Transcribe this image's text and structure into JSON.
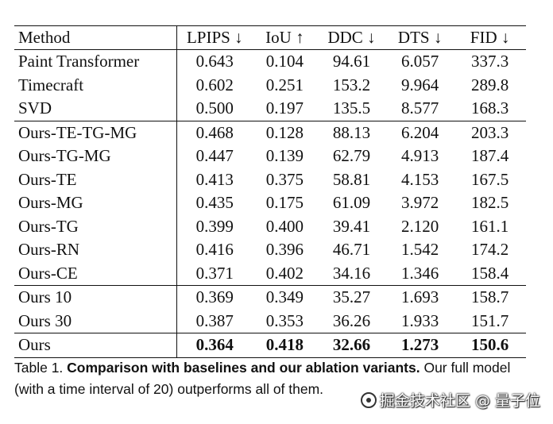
{
  "table": {
    "headers": [
      "Method",
      "LPIPS ↓",
      "IoU ↑",
      "DDC ↓",
      "DTS ↓",
      "FID ↓"
    ],
    "groups": [
      [
        [
          "Paint Transformer",
          "0.643",
          "0.104",
          "94.61",
          "6.057",
          "337.3"
        ],
        [
          "Timecraft",
          "0.602",
          "0.251",
          "153.2",
          "9.964",
          "289.8"
        ],
        [
          "SVD",
          "0.500",
          "0.197",
          "135.5",
          "8.577",
          "168.3"
        ]
      ],
      [
        [
          "Ours-TE-TG-MG",
          "0.468",
          "0.128",
          "88.13",
          "6.204",
          "203.3"
        ],
        [
          "Ours-TG-MG",
          "0.447",
          "0.139",
          "62.79",
          "4.913",
          "187.4"
        ],
        [
          "Ours-TE",
          "0.413",
          "0.375",
          "58.81",
          "4.153",
          "167.5"
        ],
        [
          "Ours-MG",
          "0.435",
          "0.175",
          "61.09",
          "3.972",
          "182.5"
        ],
        [
          "Ours-TG",
          "0.399",
          "0.400",
          "39.41",
          "2.120",
          "161.1"
        ],
        [
          "Ours-RN",
          "0.416",
          "0.396",
          "46.71",
          "1.542",
          "174.2"
        ],
        [
          "Ours-CE",
          "0.371",
          "0.402",
          "34.16",
          "1.346",
          "158.4"
        ]
      ],
      [
        [
          "Ours 10",
          "0.369",
          "0.349",
          "35.27",
          "1.693",
          "158.7"
        ],
        [
          "Ours 30",
          "0.387",
          "0.353",
          "36.26",
          "1.933",
          "151.7"
        ]
      ],
      [
        [
          "Ours",
          "0.364",
          "0.418",
          "32.66",
          "1.273",
          "150.6"
        ]
      ]
    ]
  },
  "caption": {
    "label": "Table 1.",
    "bold_text": "Comparison with baselines and our ablation variants.",
    "text": "Our full model (with a time interval of 20) outperforms all of them."
  },
  "watermark": {
    "text": "掘金技术社区 @ 量子位"
  }
}
